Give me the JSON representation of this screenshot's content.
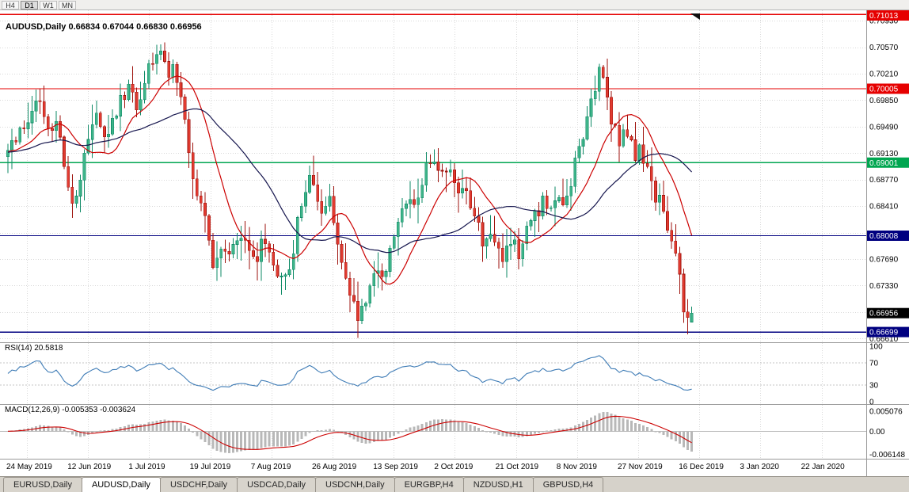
{
  "toolbar": {
    "timeframes": [
      "H4",
      "D1",
      "W1",
      "MN"
    ],
    "active": "D1"
  },
  "chart_title": "AUDUSD,Daily 0.66834 0.67044 0.66830 0.66956",
  "indicators": {
    "rsi_label": "RSI(14) 20.5818",
    "macd_label": "MACD(12,26,9) -0.005353 -0.003624"
  },
  "axes": {
    "price_ticks": [
      "0.70930",
      "0.70570",
      "0.70210",
      "0.69850",
      "0.69490",
      "0.69130",
      "0.68770",
      "0.68410",
      "0.67690",
      "0.67330",
      "0.66610"
    ],
    "price_grid": {
      "start": 0.6661,
      "step": 0.0036
    },
    "rsi_ticks": [
      100,
      70,
      30,
      0
    ],
    "macd_ticks": [
      "0.005076",
      "0.00",
      "-0.006148"
    ],
    "dates": [
      "24 May 2019",
      "12 Jun 2019",
      "1 Jul 2019",
      "19 Jul 2019",
      "7 Aug 2019",
      "26 Aug 2019",
      "13 Sep 2019",
      "2 Oct 2019",
      "21 Oct 2019",
      "8 Nov 2019",
      "27 Nov 2019",
      "16 Dec 2019",
      "3 Jan 2020",
      "22 Jan 2020"
    ]
  },
  "chart_data": {
    "type": "candlestick",
    "symbol": "AUDUSD",
    "timeframe": "Daily",
    "ohlc_last": {
      "open": 0.66834,
      "high": 0.67044,
      "low": 0.6683,
      "close": 0.66956
    },
    "bars_visible": 171,
    "price_range_visible": [
      0.6656,
      0.7106
    ],
    "price_path_anchors": [
      [
        0,
        0.6915
      ],
      [
        2,
        0.6932
      ],
      [
        5,
        0.6962
      ],
      [
        8,
        0.6986
      ],
      [
        10,
        0.6938
      ],
      [
        12,
        0.6958
      ],
      [
        14,
        0.6898
      ],
      [
        16,
        0.6843
      ],
      [
        18,
        0.6879
      ],
      [
        20,
        0.6933
      ],
      [
        22,
        0.6963
      ],
      [
        24,
        0.6937
      ],
      [
        26,
        0.6953
      ],
      [
        28,
        0.6983
      ],
      [
        30,
        0.7
      ],
      [
        32,
        0.6976
      ],
      [
        33,
        0.699
      ],
      [
        35,
        0.7028
      ],
      [
        37,
        0.7048
      ],
      [
        39,
        0.7038
      ],
      [
        40,
        0.7012
      ],
      [
        41,
        0.703
      ],
      [
        43,
        0.699
      ],
      [
        44,
        0.6952
      ],
      [
        45,
        0.6905
      ],
      [
        47,
        0.6862
      ],
      [
        49,
        0.683
      ],
      [
        50,
        0.6792
      ],
      [
        51,
        0.6757
      ],
      [
        52,
        0.677
      ],
      [
        54,
        0.6786
      ],
      [
        55,
        0.6771
      ],
      [
        57,
        0.679
      ],
      [
        58,
        0.6801
      ],
      [
        60,
        0.6786
      ],
      [
        62,
        0.6771
      ],
      [
        63,
        0.6791
      ],
      [
        65,
        0.6776
      ],
      [
        66,
        0.6752
      ],
      [
        67,
        0.6738
      ],
      [
        69,
        0.6746
      ],
      [
        71,
        0.6772
      ],
      [
        72,
        0.682
      ],
      [
        74,
        0.6851
      ],
      [
        75,
        0.6876
      ],
      [
        77,
        0.6856
      ],
      [
        78,
        0.6831
      ],
      [
        80,
        0.6851
      ],
      [
        81,
        0.6816
      ],
      [
        82,
        0.6781
      ],
      [
        84,
        0.6751
      ],
      [
        85,
        0.6716
      ],
      [
        87,
        0.669
      ],
      [
        89,
        0.6711
      ],
      [
        90,
        0.6741
      ],
      [
        92,
        0.6761
      ],
      [
        93,
        0.6746
      ],
      [
        95,
        0.6776
      ],
      [
        96,
        0.6806
      ],
      [
        98,
        0.6831
      ],
      [
        100,
        0.6856
      ],
      [
        101,
        0.6841
      ],
      [
        103,
        0.6871
      ],
      [
        104,
        0.6891
      ],
      [
        106,
        0.6906
      ],
      [
        107,
        0.6886
      ],
      [
        109,
        0.6896
      ],
      [
        111,
        0.6871
      ],
      [
        112,
        0.6851
      ],
      [
        114,
        0.6866
      ],
      [
        115,
        0.6841
      ],
      [
        117,
        0.6816
      ],
      [
        118,
        0.6791
      ],
      [
        120,
        0.6801
      ],
      [
        122,
        0.6786
      ],
      [
        123,
        0.6771
      ],
      [
        125,
        0.6786
      ],
      [
        126,
        0.6801
      ],
      [
        127,
        0.6776
      ],
      [
        129,
        0.6811
      ],
      [
        131,
        0.6841
      ],
      [
        132,
        0.6821
      ],
      [
        133,
        0.6846
      ],
      [
        135,
        0.6831
      ],
      [
        136,
        0.6856
      ],
      [
        138,
        0.6841
      ],
      [
        140,
        0.6871
      ],
      [
        141,
        0.6901
      ],
      [
        143,
        0.6936
      ],
      [
        144,
        0.6971
      ],
      [
        146,
        0.7001
      ],
      [
        147,
        0.7026
      ],
      [
        149,
        0.6996
      ],
      [
        150,
        0.6961
      ],
      [
        152,
        0.6931
      ],
      [
        153,
        0.6951
      ],
      [
        155,
        0.6931
      ],
      [
        156,
        0.6911
      ],
      [
        157,
        0.6926
      ],
      [
        158,
        0.6901
      ],
      [
        160,
        0.6881
      ],
      [
        161,
        0.6851
      ],
      [
        162,
        0.6861
      ],
      [
        163,
        0.6831
      ],
      [
        165,
        0.6801
      ],
      [
        166,
        0.6771
      ],
      [
        167,
        0.6741
      ],
      [
        168,
        0.6706
      ],
      [
        169,
        0.6686
      ],
      [
        170,
        0.6696
      ]
    ],
    "overlays": [
      {
        "name": "ma-fast",
        "type": "sma",
        "period": 13,
        "color": "#cc0000"
      },
      {
        "name": "ma-slow",
        "type": "sma",
        "period": 30,
        "color": "#16164e"
      }
    ],
    "levels": [
      {
        "label": "0.71013",
        "price": 0.71013,
        "color": "#e60000"
      },
      {
        "label": "0.70005",
        "price": 0.70005,
        "color": "#e60000"
      },
      {
        "label": "0.69001",
        "price": 0.69001,
        "color": "#00a650"
      },
      {
        "label": "0.68008",
        "price": 0.68008,
        "color": "#000080"
      },
      {
        "label": "0.66699",
        "price": 0.66699,
        "color": "#000080"
      }
    ],
    "current_price": {
      "label": "0.66956",
      "price": 0.66956,
      "color": "#000000"
    },
    "oscillators": [
      {
        "name": "rsi",
        "period": 14,
        "current": 20.5818,
        "color": "#3f7cb6",
        "range": [
          0,
          100
        ],
        "guides": [
          70,
          30
        ]
      },
      {
        "name": "macd",
        "fast": 12,
        "slow": 26,
        "signal": 9,
        "main_current": -0.005353,
        "signal_current": -0.003624,
        "histogram_color": "#b8b8b8",
        "signal_color": "#cc0000",
        "range": [
          -0.006148,
          0.005076
        ]
      }
    ],
    "colors": {
      "bull": "#3eb489",
      "bull_border": "#0e8a66",
      "bear": "#e13b30",
      "bear_border": "#9e120c"
    }
  },
  "tabs": {
    "items": [
      "EURUSD,Daily",
      "AUDUSD,Daily",
      "USDCHF,Daily",
      "USDCAD,Daily",
      "USDCNH,Daily",
      "EURGBP,H4",
      "NZDUSD,H1",
      "GBPUSD,H4"
    ],
    "active": "AUDUSD,Daily"
  }
}
